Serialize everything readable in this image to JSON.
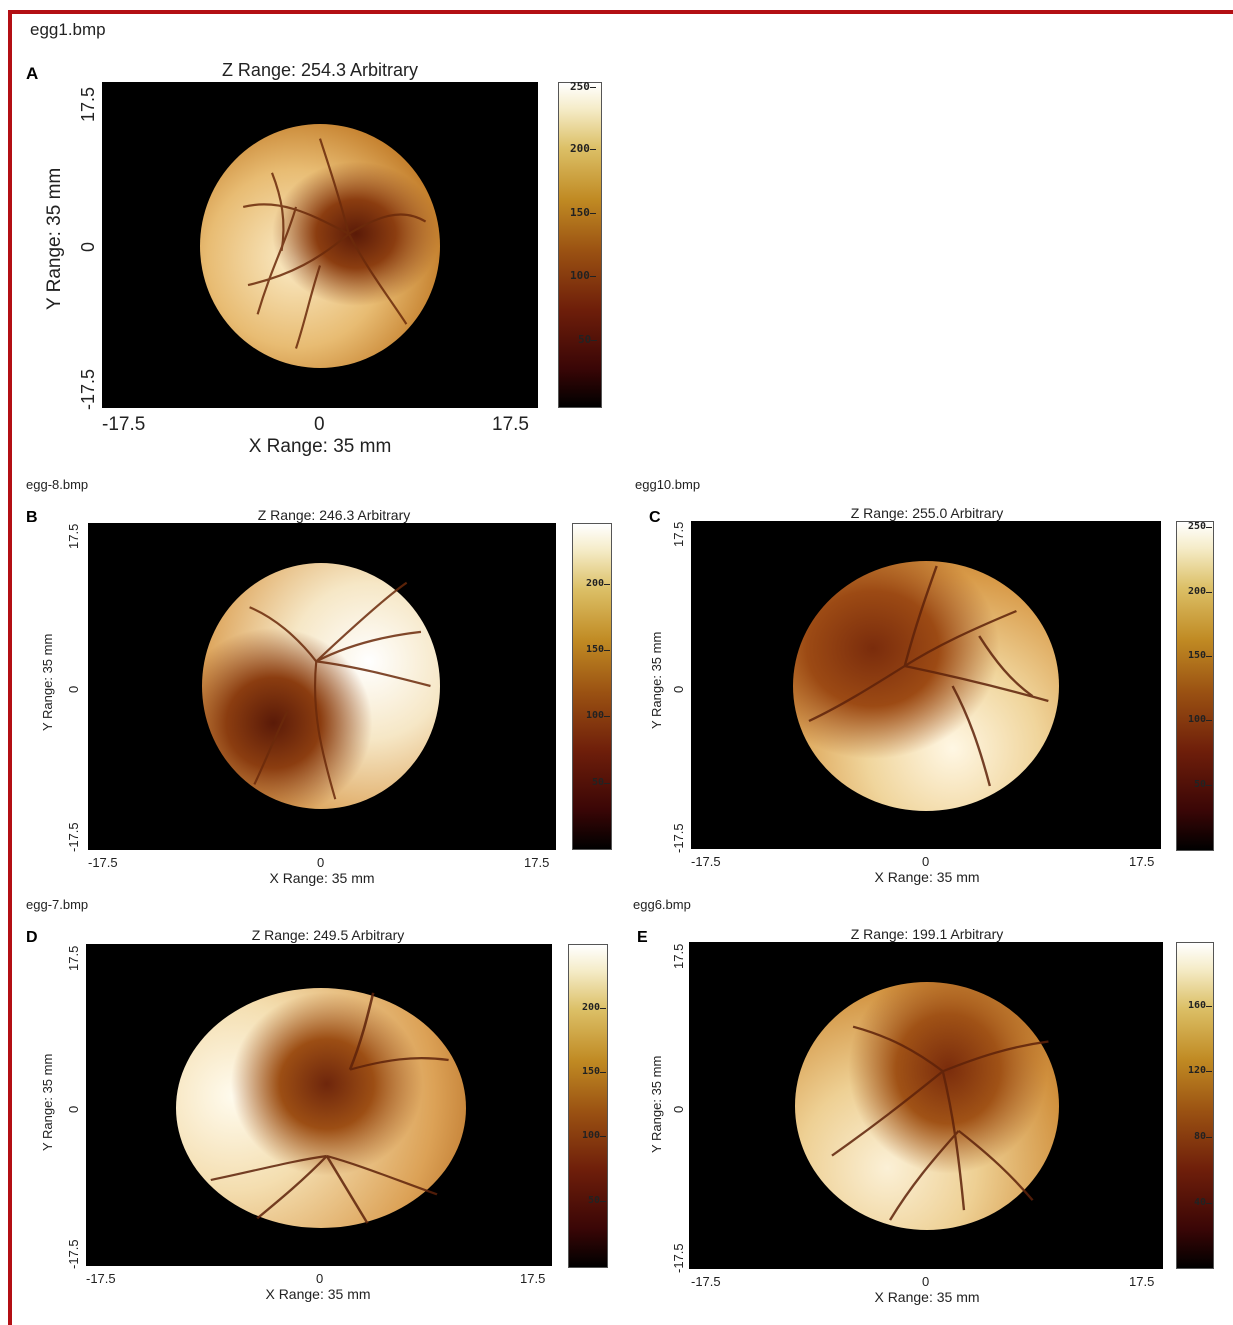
{
  "panels": [
    {
      "id": "A",
      "letter": "A",
      "filename": "egg1.bmp",
      "z_title": "Z Range:  254.3 Arbitrary",
      "x_label": "X Range: 35 mm",
      "y_label": "Y Range: 35 mm",
      "x_ticks": [
        "-17.5",
        "0",
        "17.5"
      ],
      "y_ticks": [
        "17.5",
        "0",
        "-17.5"
      ],
      "colorbar_ticks": [
        "250",
        "200",
        "150",
        "100",
        "50"
      ]
    },
    {
      "id": "B",
      "letter": "B",
      "filename": "egg-8.bmp",
      "z_title": "Z Range:  246.3 Arbitrary",
      "x_label": "X Range: 35 mm",
      "y_label": "Y Range: 35 mm",
      "x_ticks": [
        "-17.5",
        "0",
        "17.5"
      ],
      "y_ticks": [
        "17.5",
        "0",
        "-17.5"
      ],
      "colorbar_ticks": [
        "200",
        "150",
        "100",
        "50"
      ]
    },
    {
      "id": "C",
      "letter": "C",
      "filename": "egg10.bmp",
      "z_title": "Z Range:  255.0 Arbitrary",
      "x_label": "X Range: 35 mm",
      "y_label": "Y Range: 35 mm",
      "x_ticks": [
        "-17.5",
        "0",
        "17.5"
      ],
      "y_ticks": [
        "17.5",
        "0",
        "-17.5"
      ],
      "colorbar_ticks": [
        "250",
        "200",
        "150",
        "100",
        "50"
      ]
    },
    {
      "id": "D",
      "letter": "D",
      "filename": "egg-7.bmp",
      "z_title": "Z Range:  249.5 Arbitrary",
      "x_label": "X Range: 35 mm",
      "y_label": "Y Range: 35 mm",
      "x_ticks": [
        "-17.5",
        "0",
        "17.5"
      ],
      "y_ticks": [
        "17.5",
        "0",
        "-17.5"
      ],
      "colorbar_ticks": [
        "200",
        "150",
        "100",
        "50"
      ]
    },
    {
      "id": "E",
      "letter": "E",
      "filename": "egg6.bmp",
      "z_title": "Z Range:  199.1 Arbitrary",
      "x_label": "X Range: 35 mm",
      "y_label": "Y Range: 35 mm",
      "x_ticks": [
        "-17.5",
        "0",
        "17.5"
      ],
      "y_ticks": [
        "17.5",
        "0",
        "-17.5"
      ],
      "colorbar_ticks": [
        "160",
        "120",
        "80",
        "40"
      ]
    }
  ],
  "colors": {
    "frame": "#b30f14",
    "plot_background": "#000000",
    "heatmap_low": "#000000",
    "heatmap_mid": "#9a5112",
    "heatmap_high": "#ffffff"
  }
}
